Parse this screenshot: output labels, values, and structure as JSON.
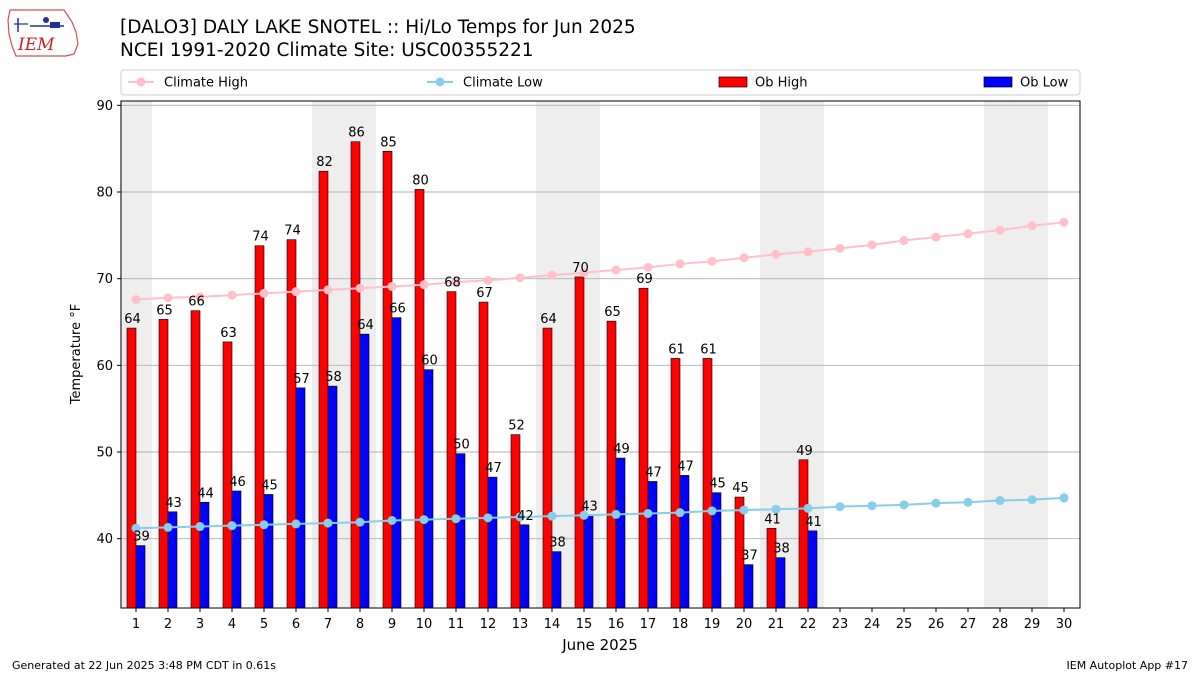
{
  "header": {
    "title_line1": "[DALO3] DALY LAKE SNOTEL :: Hi/Lo Temps for Jun 2025",
    "title_line2": "NCEI 1991-2020 Climate Site: USC00355221",
    "logo_text": "IEM"
  },
  "footer": {
    "generated": "Generated at 22 Jun 2025 3:48 PM CDT in 0.61s",
    "app": "IEM Autoplot App #17"
  },
  "chart_data": {
    "type": "bar",
    "xlabel": "June 2025",
    "ylabel": "Temperature °F",
    "ylim": [
      32,
      90.5
    ],
    "yticks": [
      40,
      50,
      60,
      70,
      80,
      90
    ],
    "days": [
      1,
      2,
      3,
      4,
      5,
      6,
      7,
      8,
      9,
      10,
      11,
      12,
      13,
      14,
      15,
      16,
      17,
      18,
      19,
      20,
      21,
      22,
      23,
      24,
      25,
      26,
      27,
      28,
      29,
      30
    ],
    "weekend_days": [
      1,
      7,
      8,
      14,
      15,
      21,
      22,
      28,
      29
    ],
    "grid": "horizontal",
    "legend": "top",
    "series": [
      {
        "name": "Climate High",
        "kind": "line",
        "color": "#ffc0cb",
        "values": [
          67.6,
          67.8,
          67.9,
          68.1,
          68.3,
          68.5,
          68.7,
          68.9,
          69.1,
          69.3,
          69.6,
          69.8,
          70.1,
          70.4,
          70.7,
          71.0,
          71.3,
          71.7,
          72.0,
          72.4,
          72.8,
          73.1,
          73.5,
          73.9,
          74.4,
          74.8,
          75.2,
          75.6,
          76.1,
          76.5
        ]
      },
      {
        "name": "Climate Low",
        "kind": "line",
        "color": "#87ceeb",
        "values": [
          41.2,
          41.3,
          41.4,
          41.5,
          41.6,
          41.7,
          41.8,
          41.9,
          42.1,
          42.2,
          42.3,
          42.4,
          42.5,
          42.6,
          42.7,
          42.8,
          42.9,
          43.0,
          43.2,
          43.3,
          43.4,
          43.5,
          43.7,
          43.8,
          43.9,
          44.1,
          44.2,
          44.4,
          44.5,
          44.7
        ]
      },
      {
        "name": "Ob High",
        "kind": "bar",
        "color": "#ff0000",
        "values": [
          64.3,
          65.3,
          66.3,
          62.7,
          73.8,
          74.5,
          82.4,
          85.8,
          84.7,
          80.3,
          68.5,
          67.3,
          52.0,
          64.3,
          70.2,
          65.1,
          68.9,
          60.8,
          60.8,
          44.8,
          41.2,
          49.1
        ],
        "labels": [
          "64",
          "65",
          "66",
          "63",
          "74",
          "74",
          "82",
          "86",
          "85",
          "80",
          "68",
          "67",
          "52",
          "64",
          "70",
          "65",
          "69",
          "61",
          "61",
          "45",
          "41",
          "49"
        ]
      },
      {
        "name": "Ob Low",
        "kind": "bar",
        "color": "#0000ff",
        "values": [
          39.2,
          43.1,
          44.2,
          45.5,
          45.1,
          57.4,
          57.6,
          63.6,
          65.5,
          59.5,
          49.8,
          47.1,
          41.6,
          38.5,
          42.7,
          49.3,
          46.6,
          47.3,
          45.3,
          37.0,
          37.8,
          40.9
        ],
        "labels": [
          "39",
          "43",
          "44",
          "46",
          "45",
          "57",
          "58",
          "64",
          "66",
          "60",
          "50",
          "47",
          "42",
          "38",
          "43",
          "49",
          "47",
          "47",
          "45",
          "37",
          "38",
          "41"
        ]
      }
    ]
  }
}
